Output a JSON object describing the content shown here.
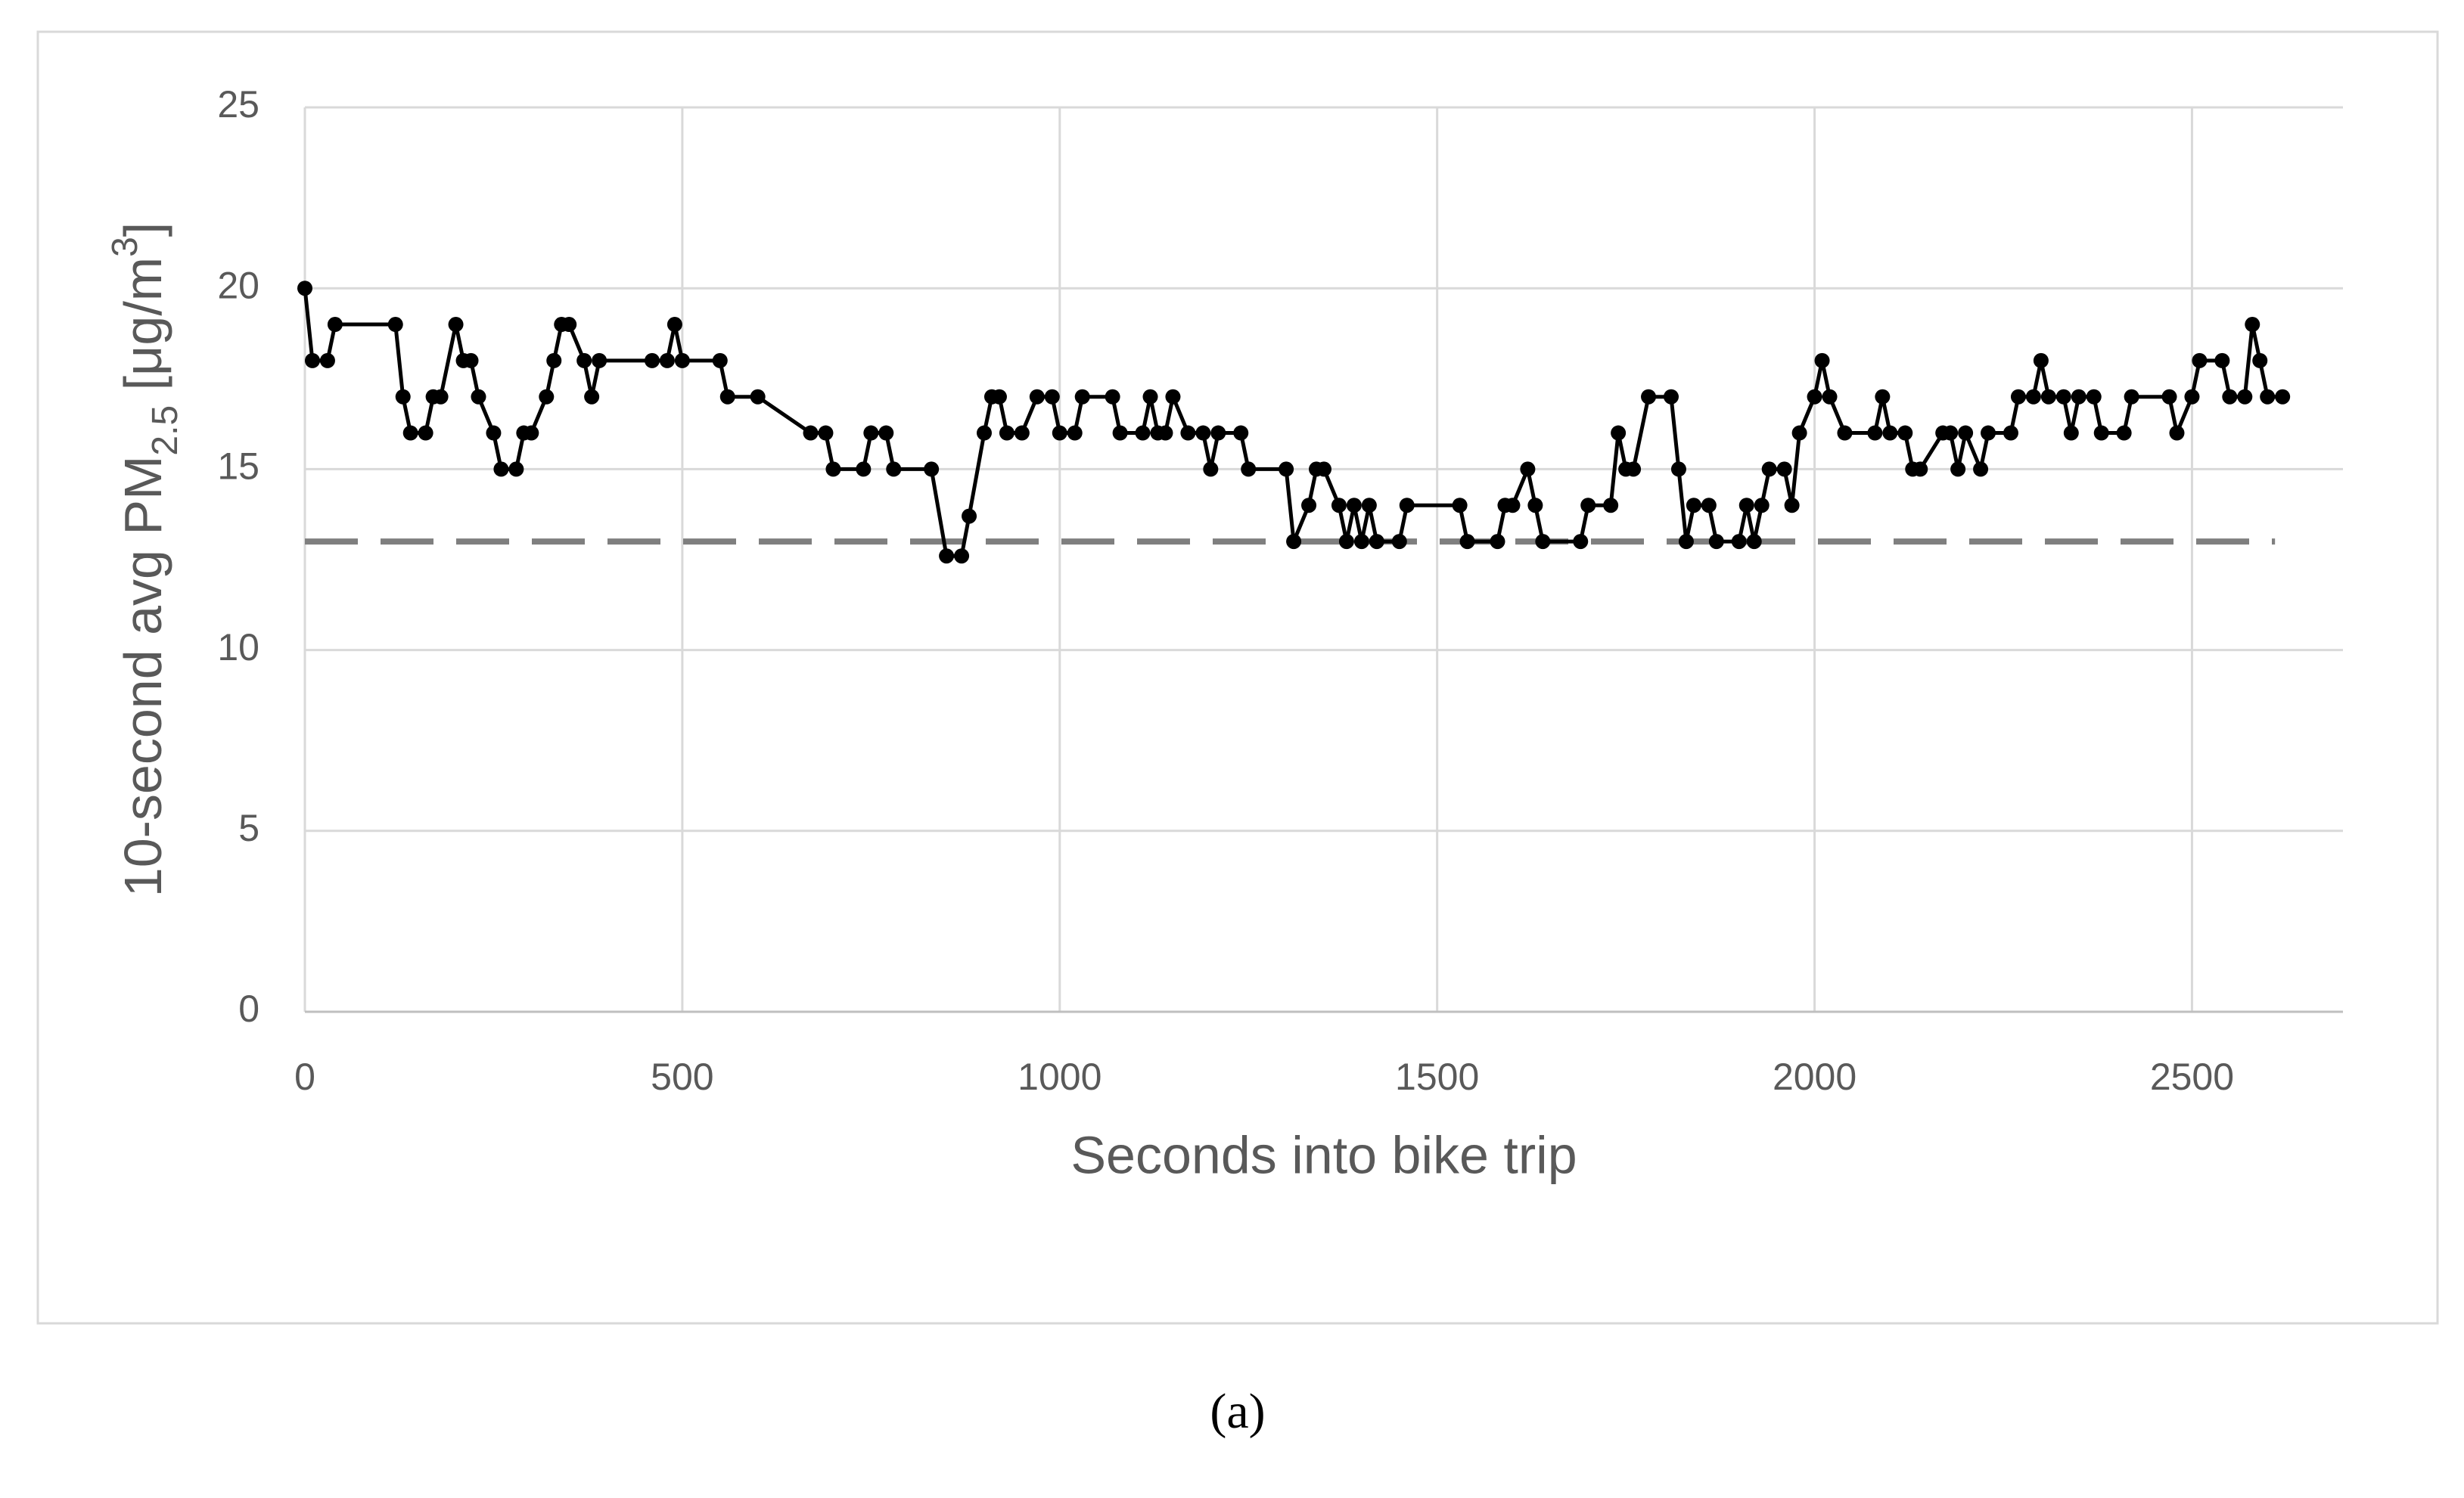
{
  "chart_data": {
    "type": "line",
    "x_label": "Seconds into bike trip",
    "y_label_parts": [
      "10-second avg PM",
      "2.5",
      " [μg/m",
      "3",
      "]"
    ],
    "caption": "(a)",
    "x": [
      0,
      10,
      30,
      40,
      120,
      130,
      140,
      160,
      170,
      180,
      200,
      210,
      220,
      230,
      250,
      260,
      280,
      290,
      300,
      320,
      330,
      340,
      350,
      370,
      380,
      390,
      460,
      480,
      490,
      500,
      550,
      560,
      600,
      670,
      690,
      700,
      740,
      750,
      770,
      780,
      830,
      850,
      870,
      880,
      900,
      910,
      920,
      930,
      950,
      970,
      990,
      1000,
      1020,
      1030,
      1070,
      1080,
      1110,
      1120,
      1130,
      1140,
      1150,
      1170,
      1190,
      1200,
      1210,
      1240,
      1250,
      1300,
      1310,
      1330,
      1340,
      1350,
      1370,
      1380,
      1390,
      1400,
      1410,
      1420,
      1450,
      1460,
      1530,
      1540,
      1580,
      1590,
      1600,
      1620,
      1630,
      1640,
      1690,
      1700,
      1730,
      1740,
      1750,
      1760,
      1780,
      1810,
      1820,
      1830,
      1840,
      1860,
      1870,
      1900,
      1910,
      1920,
      1930,
      1940,
      1960,
      1970,
      1980,
      2000,
      2010,
      2020,
      2040,
      2080,
      2090,
      2100,
      2120,
      2130,
      2140,
      2170,
      2180,
      2190,
      2200,
      2220,
      2230,
      2260,
      2270,
      2290,
      2300,
      2310,
      2330,
      2340,
      2350,
      2370,
      2380,
      2410,
      2420,
      2470,
      2480,
      2500,
      2510,
      2540,
      2550,
      2570,
      2580,
      2590,
      2600,
      2620
    ],
    "values": [
      20,
      18,
      18,
      19,
      19,
      17,
      16,
      16,
      17,
      17,
      19,
      18,
      18,
      17,
      16,
      15,
      15,
      16,
      16,
      17,
      18,
      19,
      19,
      18,
      17,
      18,
      18,
      18,
      19,
      18,
      18,
      17,
      17,
      16,
      16,
      15,
      15,
      16,
      16,
      15,
      15,
      12.6,
      12.6,
      13.7,
      16,
      17,
      17,
      16,
      16,
      17,
      17,
      16,
      16,
      17,
      17,
      16,
      16,
      17,
      16,
      16,
      17,
      16,
      16,
      15,
      16,
      16,
      15,
      15,
      13,
      14,
      15,
      15,
      14,
      13,
      14,
      13,
      14,
      13,
      13,
      14,
      14,
      13,
      13,
      14,
      14,
      15,
      14,
      13,
      13,
      14,
      14,
      16,
      15,
      15,
      17,
      17,
      15,
      13,
      14,
      14,
      13,
      13,
      14,
      13,
      14,
      15,
      15,
      14,
      16,
      17,
      18,
      17,
      16,
      16,
      17,
      16,
      16,
      15,
      15,
      16,
      16,
      15,
      16,
      15,
      16,
      16,
      17,
      17,
      18,
      17,
      17,
      16,
      17,
      17,
      16,
      16,
      17,
      17,
      16,
      17,
      18,
      18,
      17,
      17,
      19,
      18,
      17,
      17
    ],
    "color": "#000000",
    "reference_line": {
      "y": 13,
      "x": [
        0,
        2610
      ],
      "color": "#7f7f7f",
      "dashed": true
    },
    "xlim": [
      0,
      2700
    ],
    "xticks": [
      0,
      500,
      1000,
      1500,
      2000,
      2500
    ],
    "ylim": [
      0,
      25
    ],
    "yticks": [
      0,
      5,
      10,
      15,
      20,
      25
    ],
    "grid": true
  }
}
